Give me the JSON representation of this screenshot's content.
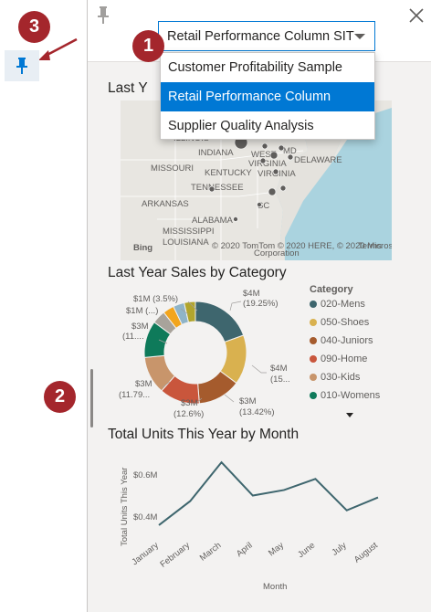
{
  "callouts": {
    "one": "1",
    "two": "2",
    "three": "3"
  },
  "dropdown": {
    "selected": "Retail Performance Column SIT",
    "options": [
      "Customer Profitability Sample",
      "Retail Performance Column",
      "Supplier Quality Analysis"
    ]
  },
  "map_visual": {
    "title": "Last Year Sales by Store",
    "title_visible": "Last Y",
    "labels": [
      "ILLINOIS",
      "INDIANA",
      "WEST",
      "VIRGINIA",
      "MD",
      "DELAWARE",
      "MISSOURI",
      "KENTUCKY",
      "VIRGINIA",
      "TENNESSEE",
      "ARKANSAS",
      "ALABAMA",
      "MISSISSIPPI",
      "LOUISIANA",
      "SC"
    ],
    "bing": "Bing",
    "copyright": "© 2020 TomTom © 2020 HERE, © 2020 Microsoft",
    "terms": "Terms",
    "corporation": "Corporation"
  },
  "donut_visual": {
    "title": "Last Year Sales by Category",
    "legend_title": "Category",
    "legend": [
      "020-Mens",
      "050-Shoes",
      "040-Juniors",
      "090-Home",
      "030-Kids",
      "010-Womens"
    ],
    "labels": {
      "mens_a": "$4M",
      "mens_b": "(19.25%)",
      "shoes_a": "$4M",
      "shoes_b": "(15...",
      "juniors_a": "$3M",
      "juniors_b": "(13.42%)",
      "home_a": "$3M",
      "home_b": "(12.6%)",
      "kids_a": "$3M",
      "kids_b": "(11.79...",
      "womens_a": "$3M",
      "womens_b": "(11....",
      "s1": "$1M (3.5%)",
      "s2": "$1M (...)"
    },
    "colors": [
      "#3e666e",
      "#d9b14f",
      "#a55b2d",
      "#c9563c",
      "#c8956b",
      "#0e7a5a",
      "#a8a39b",
      "#f2a51d",
      "#8fb4c8",
      "#b1a52d"
    ]
  },
  "line_visual": {
    "title": "Total Units This Year by Month",
    "ylabel": "Total Units This Year",
    "xlabel": "Month",
    "yticks": [
      "$0.6M",
      "$0.4M"
    ]
  },
  "chart_data": {
    "type": "line",
    "title": "Total Units This Year by Month",
    "xlabel": "Month",
    "ylabel": "Total Units This Year",
    "categories": [
      "January",
      "February",
      "March",
      "April",
      "May",
      "June",
      "July",
      "August"
    ],
    "values": [
      0.34,
      0.47,
      0.68,
      0.5,
      0.53,
      0.59,
      0.42,
      0.49
    ],
    "ylim": [
      0.3,
      0.72
    ],
    "color": "#3e666e"
  }
}
